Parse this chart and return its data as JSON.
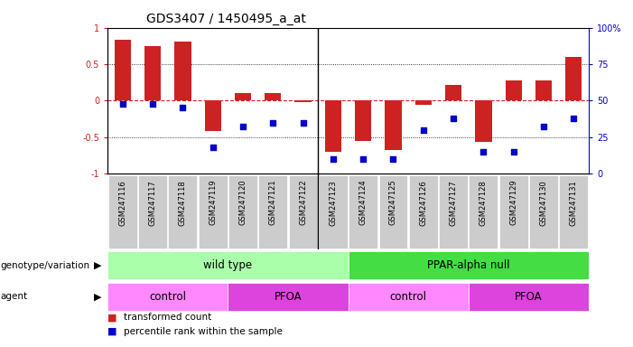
{
  "title": "GDS3407 / 1450495_a_at",
  "samples": [
    "GSM247116",
    "GSM247117",
    "GSM247118",
    "GSM247119",
    "GSM247120",
    "GSM247121",
    "GSM247122",
    "GSM247123",
    "GSM247124",
    "GSM247125",
    "GSM247126",
    "GSM247127",
    "GSM247128",
    "GSM247129",
    "GSM247130",
    "GSM247131"
  ],
  "bar_values": [
    0.84,
    0.75,
    0.81,
    -0.42,
    0.1,
    0.1,
    -0.02,
    -0.7,
    -0.55,
    -0.68,
    -0.06,
    0.22,
    -0.56,
    0.28,
    0.28,
    0.6
  ],
  "dot_percentile": [
    48,
    48,
    45,
    18,
    32,
    35,
    35,
    10,
    10,
    10,
    30,
    38,
    15,
    15,
    32,
    38
  ],
  "bar_color": "#cc2222",
  "dot_color": "#0000cc",
  "zero_line_color": "#cc2222",
  "ylim": [
    -1.0,
    1.0
  ],
  "right_yticks": [
    0,
    25,
    50,
    75,
    100
  ],
  "right_yticklabels": [
    "0",
    "25",
    "50",
    "75",
    "100%"
  ],
  "genotype_groups": [
    {
      "label": "wild type",
      "start": 0,
      "end": 7,
      "color": "#aaffaa"
    },
    {
      "label": "PPAR-alpha null",
      "start": 8,
      "end": 15,
      "color": "#44dd44"
    }
  ],
  "agent_groups": [
    {
      "label": "control",
      "start": 0,
      "end": 3,
      "color": "#ff88ff"
    },
    {
      "label": "PFOA",
      "start": 4,
      "end": 7,
      "color": "#dd44dd"
    },
    {
      "label": "control",
      "start": 8,
      "end": 11,
      "color": "#ff88ff"
    },
    {
      "label": "PFOA",
      "start": 12,
      "end": 15,
      "color": "#dd44dd"
    }
  ],
  "row_labels": [
    "genotype/variation",
    "agent"
  ],
  "legend_items": [
    {
      "label": "transformed count",
      "color": "#cc2222"
    },
    {
      "label": "percentile rank within the sample",
      "color": "#0000cc"
    }
  ],
  "bg_color": "#ffffff",
  "title_fontsize": 10,
  "bar_width": 0.55,
  "sample_bg_color": "#cccccc",
  "divider_col": 7
}
